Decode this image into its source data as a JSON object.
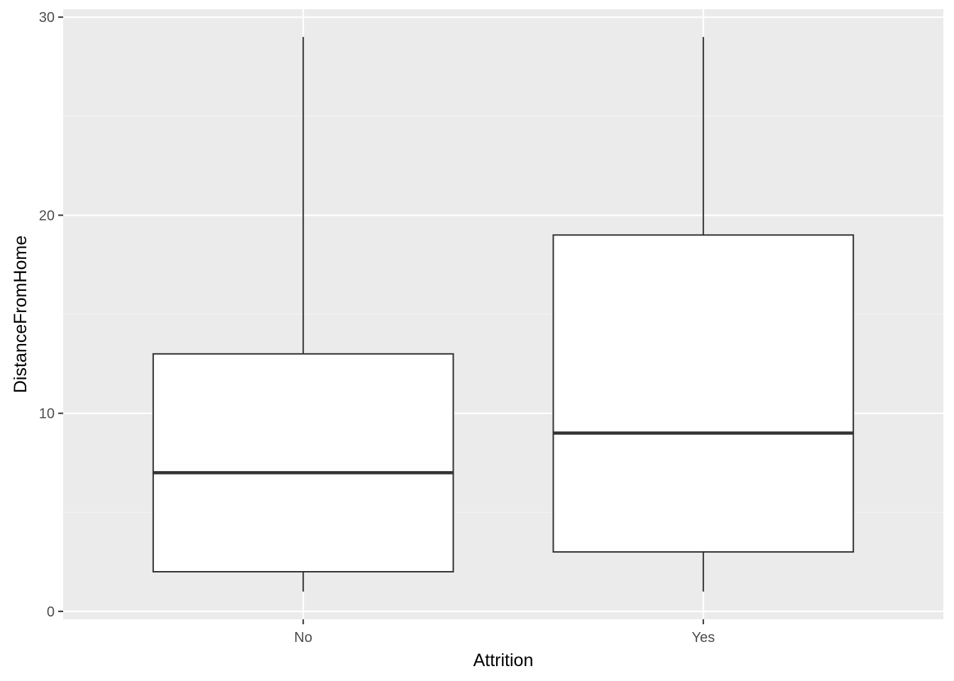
{
  "chart_data": {
    "type": "box",
    "title": "",
    "xlabel": "Attrition",
    "ylabel": "DistanceFromHome",
    "categories": [
      "No",
      "Yes"
    ],
    "boxes": [
      {
        "category": "No",
        "whisker_low": 1,
        "q1": 2,
        "median": 7,
        "q3": 13,
        "whisker_high": 29
      },
      {
        "category": "Yes",
        "whisker_low": 1,
        "q1": 3,
        "median": 9,
        "q3": 19,
        "whisker_high": 29
      }
    ],
    "ylim": [
      -0.4,
      30.4
    ],
    "y_ticks": [
      0,
      10,
      20,
      30
    ],
    "y_tick_labels": [
      "0",
      "10",
      "20",
      "30"
    ],
    "grid": true,
    "legend": "none",
    "colors": {
      "panel_background": "#ebebeb",
      "grid_major": "#ffffff",
      "grid_minor": "#f5f5f5",
      "box_fill": "#ffffff",
      "box_stroke": "#333333",
      "tick_mark": "#333333"
    }
  }
}
